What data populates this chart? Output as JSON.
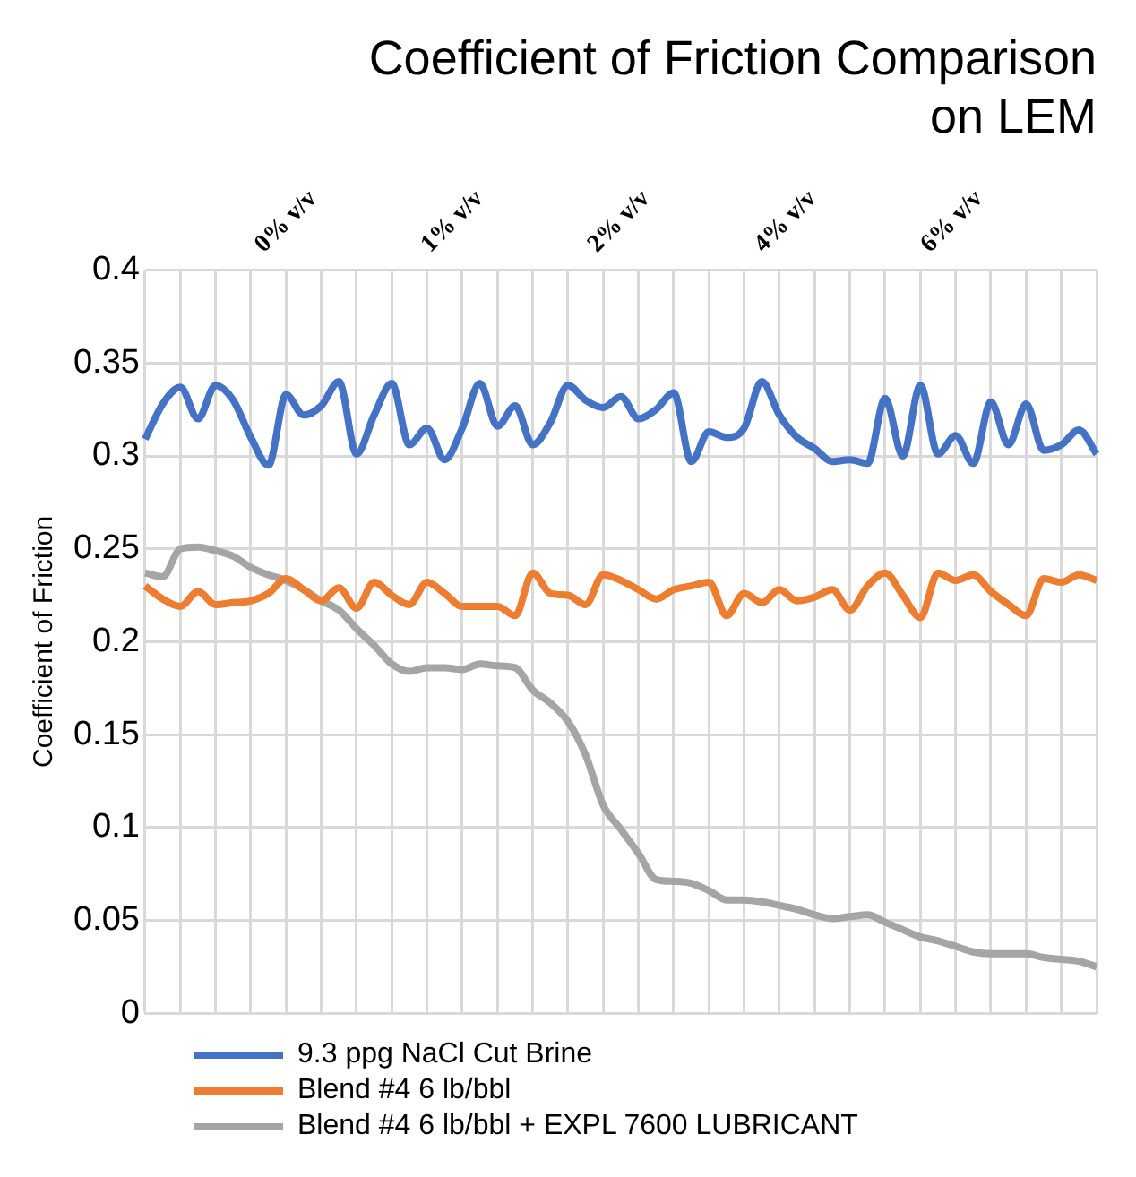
{
  "chart_data": {
    "type": "line",
    "title": "Coefficient of Friction Comparison on LEM",
    "ylabel": "Coefficient of Friction",
    "annotations": [
      "0% v/v",
      "1% v/v",
      "2% v/v",
      "4% v/v",
      "6% v/v"
    ],
    "categories": [
      null,
      null,
      null,
      null,
      null,
      null,
      null,
      null,
      null,
      null,
      null,
      null,
      null,
      null,
      null,
      null,
      null,
      null,
      null,
      null,
      null,
      null,
      null,
      null,
      null,
      null,
      null,
      null,
      null,
      null,
      null,
      null,
      null,
      null,
      null,
      null,
      null,
      null,
      null,
      null,
      null,
      null,
      null,
      null,
      null,
      null,
      null,
      null,
      null,
      null,
      null,
      null,
      null,
      null,
      null
    ],
    "series": [
      {
        "name": "9.3 ppg NaCl Cut Brine",
        "color": "#4472c4",
        "values": [
          0.309,
          0.328,
          0.337,
          0.32,
          0.338,
          0.33,
          0.31,
          0.295,
          0.333,
          0.322,
          0.327,
          0.34,
          0.301,
          0.322,
          0.339,
          0.306,
          0.315,
          0.298,
          0.315,
          0.339,
          0.316,
          0.327,
          0.306,
          0.318,
          0.338,
          0.33,
          0.326,
          0.332,
          0.32,
          0.325,
          0.334,
          0.297,
          0.313,
          0.31,
          0.315,
          0.34,
          0.322,
          0.31,
          0.304,
          0.297,
          0.298,
          0.296,
          0.331,
          0.3,
          0.338,
          0.301,
          0.311,
          0.296,
          0.329,
          0.306,
          0.328,
          0.303,
          0.306,
          0.314,
          0.301
        ]
      },
      {
        "name": "Blend #4 6 lb/bbl",
        "color": "#ed7d31",
        "values": [
          0.23,
          0.223,
          0.219,
          0.227,
          0.22,
          0.221,
          0.222,
          0.226,
          0.234,
          0.228,
          0.222,
          0.229,
          0.218,
          0.232,
          0.225,
          0.22,
          0.232,
          0.226,
          0.219,
          0.219,
          0.219,
          0.214,
          0.237,
          0.226,
          0.225,
          0.22,
          0.236,
          0.233,
          0.228,
          0.223,
          0.228,
          0.23,
          0.232,
          0.214,
          0.226,
          0.221,
          0.228,
          0.222,
          0.224,
          0.228,
          0.217,
          0.23,
          0.237,
          0.225,
          0.213,
          0.237,
          0.233,
          0.236,
          0.227,
          0.22,
          0.214,
          0.234,
          0.232,
          0.236,
          0.233
        ]
      },
      {
        "name": "Blend #4 6 lb/bbl + EXPL 7600 LUBRICANT",
        "color": "#a5a5a5",
        "values": [
          0.237,
          0.235,
          0.25,
          0.251,
          0.249,
          0.246,
          0.24,
          0.236,
          0.233,
          0.228,
          0.222,
          0.217,
          0.207,
          0.198,
          0.188,
          0.184,
          0.186,
          0.186,
          0.185,
          0.188,
          0.187,
          0.186,
          0.174,
          0.167,
          0.157,
          0.139,
          0.112,
          0.099,
          0.086,
          0.072,
          0.071,
          0.07,
          0.066,
          0.061,
          0.061,
          0.06,
          0.058,
          0.056,
          0.053,
          0.051,
          0.052,
          0.053,
          0.049,
          0.045,
          0.041,
          0.039,
          0.036,
          0.033,
          0.032,
          0.032,
          0.032,
          0.03,
          0.029,
          0.028,
          0.025
        ]
      }
    ],
    "ylim": [
      0,
      0.4
    ],
    "yticks": [
      0,
      0.05,
      0.1,
      0.15,
      0.2,
      0.25,
      0.3,
      0.35,
      0.4
    ],
    "grid": true,
    "legend": "bottom",
    "tick_labels": "y",
    "marker": "none",
    "line_style": "solid"
  }
}
